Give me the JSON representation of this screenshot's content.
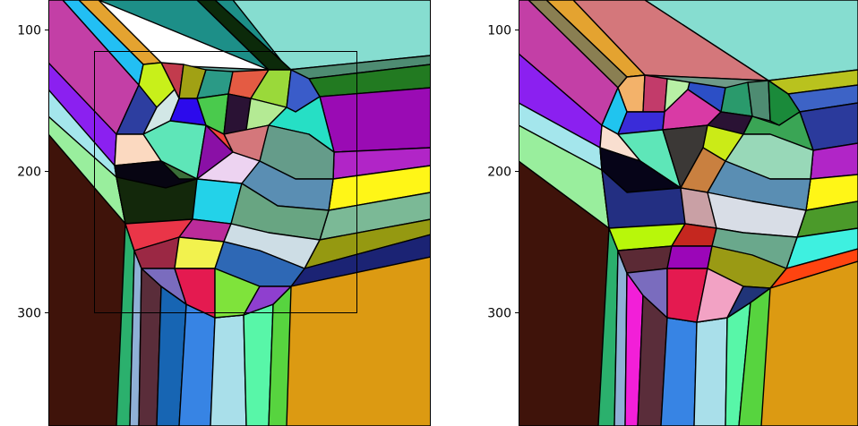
{
  "chart_data": [
    {
      "type": "image",
      "title": "",
      "xlabel": "",
      "ylabel": "",
      "ylim": [
        376,
        79
      ],
      "xlim": [
        58,
        330
      ],
      "y_ticks": [
        100,
        200,
        300
      ],
      "y_tick_labels": [
        "100",
        "200",
        "300"
      ],
      "annotations": [
        {
          "type": "rectangle",
          "x_range": [
            90,
            277
          ],
          "y_range": [
            115,
            300
          ]
        }
      ],
      "colors": {
        "frame": "#000000",
        "rect": "#000000",
        "background": "#ffffff"
      }
    },
    {
      "type": "image",
      "title": "",
      "xlabel": "",
      "ylabel": "",
      "ylim": [
        376,
        79
      ],
      "xlim": [
        58,
        330
      ],
      "y_ticks": [
        100,
        200,
        300
      ],
      "y_tick_labels": [
        "100",
        "200",
        "300"
      ],
      "annotations": [],
      "colors": {
        "frame": "#000000",
        "background": "#ffffff"
      }
    }
  ]
}
